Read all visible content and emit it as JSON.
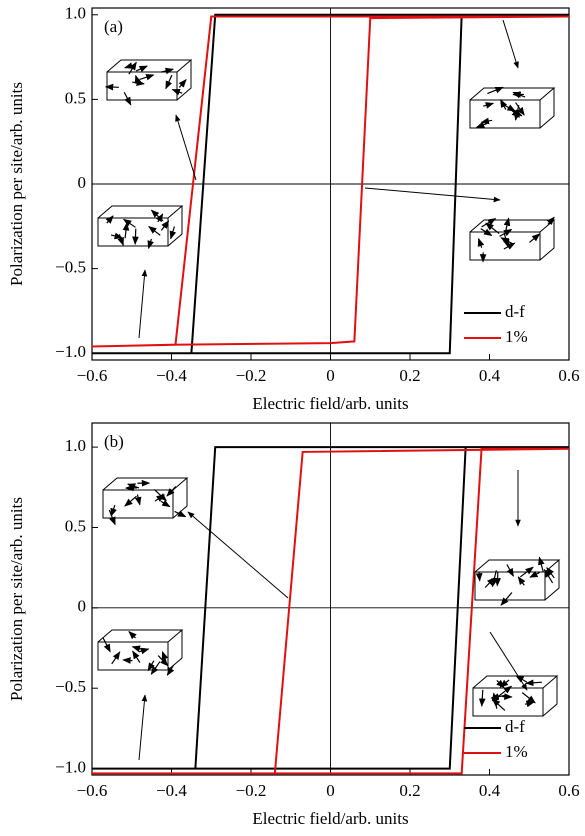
{
  "chart_data": [
    {
      "type": "line",
      "annotation": "(a)",
      "x_label": "Electric field/arb. units",
      "y_label": "Polarization per site/arb. units",
      "xlim": [
        -0.6,
        0.6
      ],
      "ylim": [
        -1.04,
        1.04
      ],
      "xticks": [
        {
          "value": -0.6,
          "label": "−0.6"
        },
        {
          "value": -0.4,
          "label": "−0.4"
        },
        {
          "value": -0.2,
          "label": "−0.2"
        },
        0,
        0.2,
        0.4,
        0.6
      ],
      "yticks": [
        {
          "value": -1,
          "label": "−1.0"
        },
        {
          "value": -0.5,
          "label": "−0.5"
        },
        0,
        0.5,
        {
          "value": 1,
          "label": "1.0"
        }
      ],
      "legend": "lower right",
      "series": [
        {
          "name": "d-f",
          "color": "#000000",
          "x": [
            0.6,
            -0.29,
            -0.35,
            -0.6,
            0.3,
            0.33,
            0.6
          ],
          "values": [
            1,
            1,
            -1,
            -1,
            -1,
            1,
            1
          ]
        },
        {
          "name": "1%",
          "color": "#e01010",
          "x": [
            0.6,
            -0.3,
            -0.39,
            -0.6,
            -0.4,
            0.0,
            0.06,
            0.1,
            0.6
          ],
          "values": [
            0.99,
            0.99,
            -0.95,
            -0.96,
            -0.95,
            -0.94,
            -0.93,
            0.98,
            0.99
          ]
        }
      ]
    },
    {
      "type": "line",
      "annotation": "(b)",
      "x_label": "Electric field/arb. units",
      "y_label": "Polarization per site/arb. units",
      "xlim": [
        -0.6,
        0.6
      ],
      "ylim": [
        -1.04,
        1.15
      ],
      "xticks": [
        {
          "value": -0.6,
          "label": "−0.6"
        },
        {
          "value": -0.4,
          "label": "−0.4"
        },
        {
          "value": -0.2,
          "label": "−0.2"
        },
        0,
        0.2,
        0.4,
        0.6
      ],
      "yticks": [
        {
          "value": -1,
          "label": "−1.0"
        },
        {
          "value": -0.5,
          "label": "−0.5"
        },
        0,
        0.5,
        {
          "value": 1,
          "label": "1.0"
        }
      ],
      "legend": "lower right",
      "series": [
        {
          "name": "d-f",
          "color": "#000000",
          "x": [
            0.6,
            -0.29,
            -0.34,
            -0.6,
            0.3,
            0.34,
            0.6
          ],
          "values": [
            1,
            1,
            -1,
            -1,
            -1,
            1,
            1
          ]
        },
        {
          "name": "1%",
          "color": "#e01010",
          "x": [
            0.6,
            -0.07,
            -0.14,
            -0.6,
            0.33,
            0.38,
            0.6
          ],
          "values": [
            0.99,
            0.97,
            -1.03,
            -1.03,
            -1.03,
            0.99,
            0.99
          ]
        }
      ]
    }
  ]
}
